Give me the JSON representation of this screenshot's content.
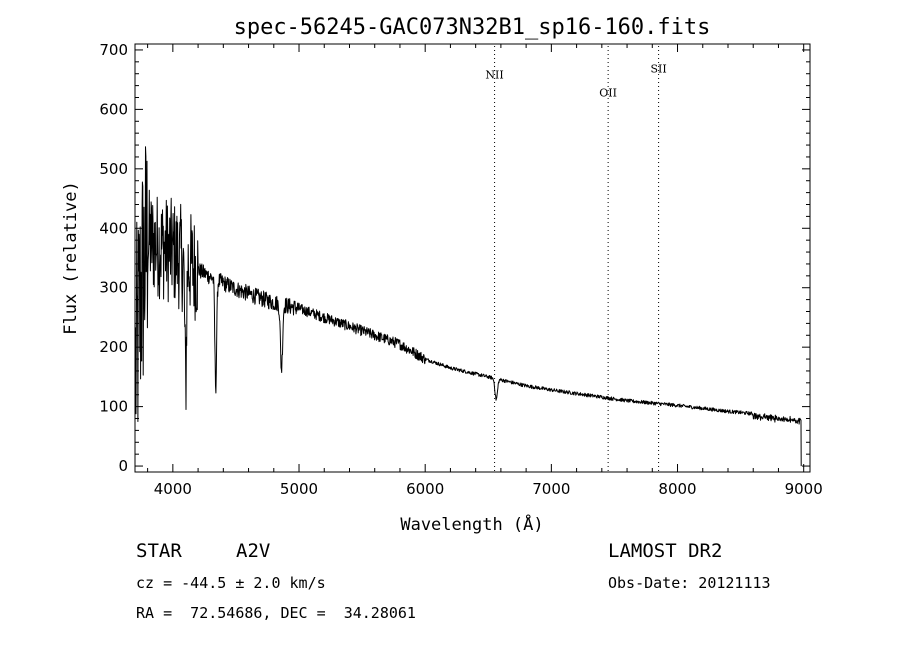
{
  "chart_data": {
    "type": "line",
    "title": "spec-56245-GAC073N32B1_sp16-160.fits",
    "xlabel": "Wavelength (Å)",
    "ylabel": "Flux (relative)",
    "xlim": [
      3700,
      9050
    ],
    "ylim": [
      -10,
      710
    ],
    "xticks": [
      4000,
      5000,
      6000,
      7000,
      8000,
      9000
    ],
    "yticks": [
      0,
      100,
      200,
      300,
      400,
      500,
      600,
      700
    ],
    "continuum": {
      "x": [
        3700,
        3750,
        3800,
        3900,
        4000,
        4100,
        4200,
        4300,
        4400,
        4500,
        4600,
        4700,
        4800,
        4900,
        5000,
        5200,
        5400,
        5600,
        5800,
        6000,
        6200,
        6400,
        6600,
        6800,
        7000,
        7200,
        7400,
        7600,
        7800,
        8000,
        8200,
        8400,
        8600,
        8800,
        8980
      ],
      "y": [
        150,
        300,
        380,
        370,
        360,
        345,
        330,
        318,
        308,
        298,
        290,
        282,
        275,
        270,
        265,
        250,
        235,
        220,
        205,
        180,
        165,
        155,
        145,
        135,
        128,
        122,
        116,
        110,
        106,
        102,
        97,
        92,
        88,
        84,
        80
      ]
    },
    "absorption_lines": [
      {
        "center": 4101,
        "depth": 200,
        "width": 10
      },
      {
        "center": 4340,
        "depth": 180,
        "width": 10
      },
      {
        "center": 4861,
        "depth": 110,
        "width": 12
      },
      {
        "center": 6563,
        "depth": 35,
        "width": 14
      }
    ],
    "emission_lines": [
      {
        "label": "NII",
        "x": 6550,
        "label_y": 652
      },
      {
        "label": "OII",
        "x": 7450,
        "label_y": 622
      },
      {
        "label": "SII",
        "x": 7850,
        "label_y": 662
      }
    ]
  },
  "info": {
    "class": "STAR",
    "subclass": "A2V",
    "cz": "cz = -44.5 ± 2.0 km/s",
    "coords": "RA =  72.54686, DEC =  34.28061",
    "survey": "LAMOST DR2",
    "obs_date": "Obs-Date: 20121113"
  }
}
